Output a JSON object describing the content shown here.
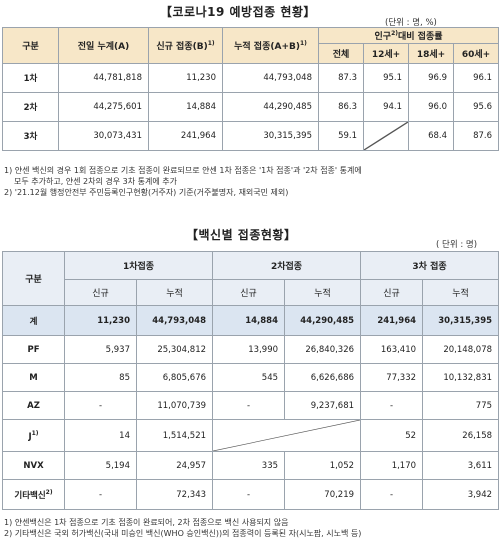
{
  "section1": {
    "title": "【코로나19 예방접종 현황】",
    "unit": "(단위 : 명, %)",
    "headers": {
      "category": "구분",
      "prev": "전일 누계(A)",
      "new": "신규 접종(B)",
      "new_sup": "1)",
      "cum": "누적 접종(A+B)",
      "cum_sup": "1)",
      "pop_rate": "인구",
      "pop_sup": "2)",
      "pop_rate_tail": "대비 접종률",
      "all": "전체",
      "age12": "12세+",
      "age18": "18세+",
      "age60": "60세+"
    },
    "rows": [
      {
        "label": "1차",
        "prev": "44,781,818",
        "new": "11,230",
        "cum": "44,793,048",
        "all": "87.3",
        "age12": "95.1",
        "age18": "96.9",
        "age60": "96.1"
      },
      {
        "label": "2차",
        "prev": "44,275,601",
        "new": "14,884",
        "cum": "44,290,485",
        "all": "86.3",
        "age12": "94.1",
        "age18": "96.0",
        "age60": "95.6"
      },
      {
        "label": "3차",
        "prev": "30,073,431",
        "new": "241,964",
        "cum": "30,315,395",
        "all": "59.1",
        "age12": "",
        "age18": "68.4",
        "age60": "87.6"
      }
    ],
    "notes": [
      "1) 얀센 백신의 경우 1회 접종으로 기초 접종이 완료되므로 얀센 1차 접종은 '1차 접종'과 '2차 접종' 통계에",
      "   모두 추가하고, 얀센 2차의 경우 3차 통계에 추가",
      "2) '21.12월 행정안전부 주민등록인구현황(거주자) 기준(거주불명자, 재외국민 제외)"
    ]
  },
  "section2": {
    "title": "【백신별 접종현황】",
    "unit": "( 단위 : 명)",
    "headers": {
      "category": "구분",
      "dose1": "1차접종",
      "dose2": "2차접종",
      "dose3": "3차 접종",
      "new": "신규",
      "cum": "누적"
    },
    "rows": [
      {
        "label": "계",
        "sup": "",
        "d1n": "11,230",
        "d1c": "44,793,048",
        "d2n": "14,884",
        "d2c": "44,290,485",
        "d3n": "241,964",
        "d3c": "30,315,395"
      },
      {
        "label": "PF",
        "sup": "",
        "d1n": "5,937",
        "d1c": "25,304,812",
        "d2n": "13,990",
        "d2c": "26,840,326",
        "d3n": "163,410",
        "d3c": "20,148,078"
      },
      {
        "label": "M",
        "sup": "",
        "d1n": "85",
        "d1c": "6,805,676",
        "d2n": "545",
        "d2c": "6,626,686",
        "d3n": "77,332",
        "d3c": "10,132,831"
      },
      {
        "label": "AZ",
        "sup": "",
        "d1n": "-",
        "d1c": "11,070,739",
        "d2n": "-",
        "d2c": "9,237,681",
        "d3n": "-",
        "d3c": "775"
      },
      {
        "label": "J",
        "sup": "1)",
        "d1n": "14",
        "d1c": "1,514,521",
        "d2n": "",
        "d2c": "",
        "d3n": "52",
        "d3c": "26,158"
      },
      {
        "label": "NVX",
        "sup": "",
        "d1n": "5,194",
        "d1c": "24,957",
        "d2n": "335",
        "d2c": "1,052",
        "d3n": "1,170",
        "d3c": "3,611"
      },
      {
        "label": "기타백신",
        "sup": "2)",
        "d1n": "-",
        "d1c": "72,343",
        "d2n": "-",
        "d2c": "70,219",
        "d3n": "-",
        "d3c": "3,942"
      }
    ],
    "notes": [
      "1) 얀센백신은 1차 접종으로 기초 접종이 완료되어, 2차 접종으로 백신 사용되지 않음",
      "2) 기타백신은 국외 허가백신(국내 미승인 백신(WHO 승인백신))의 접종력이 등록된 자(시노팜, 시노백 등)"
    ]
  }
}
